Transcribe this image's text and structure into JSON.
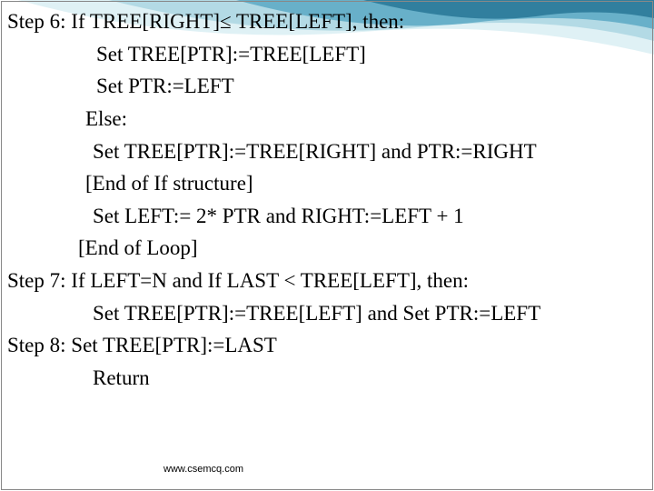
{
  "lines": [
    {
      "indent": 0,
      "text": "Step 6: If TREE[RIGHT]≤ TREE[LEFT], then:"
    },
    {
      "indent": 98,
      "text": "Set TREE[PTR]:=TREE[LEFT]"
    },
    {
      "indent": 98,
      "text": "Set PTR:=LEFT"
    },
    {
      "indent": 86,
      "text": "Else:"
    },
    {
      "indent": 94,
      "text": "Set TREE[PTR]:=TREE[RIGHT] and PTR:=RIGHT"
    },
    {
      "indent": 86,
      "text": "[End of If structure]"
    },
    {
      "indent": 94,
      "text": "Set LEFT:= 2* PTR and RIGHT:=LEFT + 1"
    },
    {
      "indent": 78,
      "text": "[End of Loop]"
    },
    {
      "indent": 0,
      "text": "Step 7: If LEFT=N and If LAST < TREE[LEFT], then:"
    },
    {
      "indent": 94,
      "text": "Set TREE[PTR]:=TREE[LEFT] and Set PTR:=LEFT"
    },
    {
      "indent": 0,
      "text": "Step 8: Set TREE[PTR]:=LAST"
    },
    {
      "indent": 94,
      "text": "Return"
    }
  ],
  "footer": "www.csemcq.com",
  "wave_colors": {
    "dark": "#2b7a99",
    "mid": "#5ba8c4",
    "light": "#a8d4e1",
    "pale": "#d4ecf2"
  }
}
